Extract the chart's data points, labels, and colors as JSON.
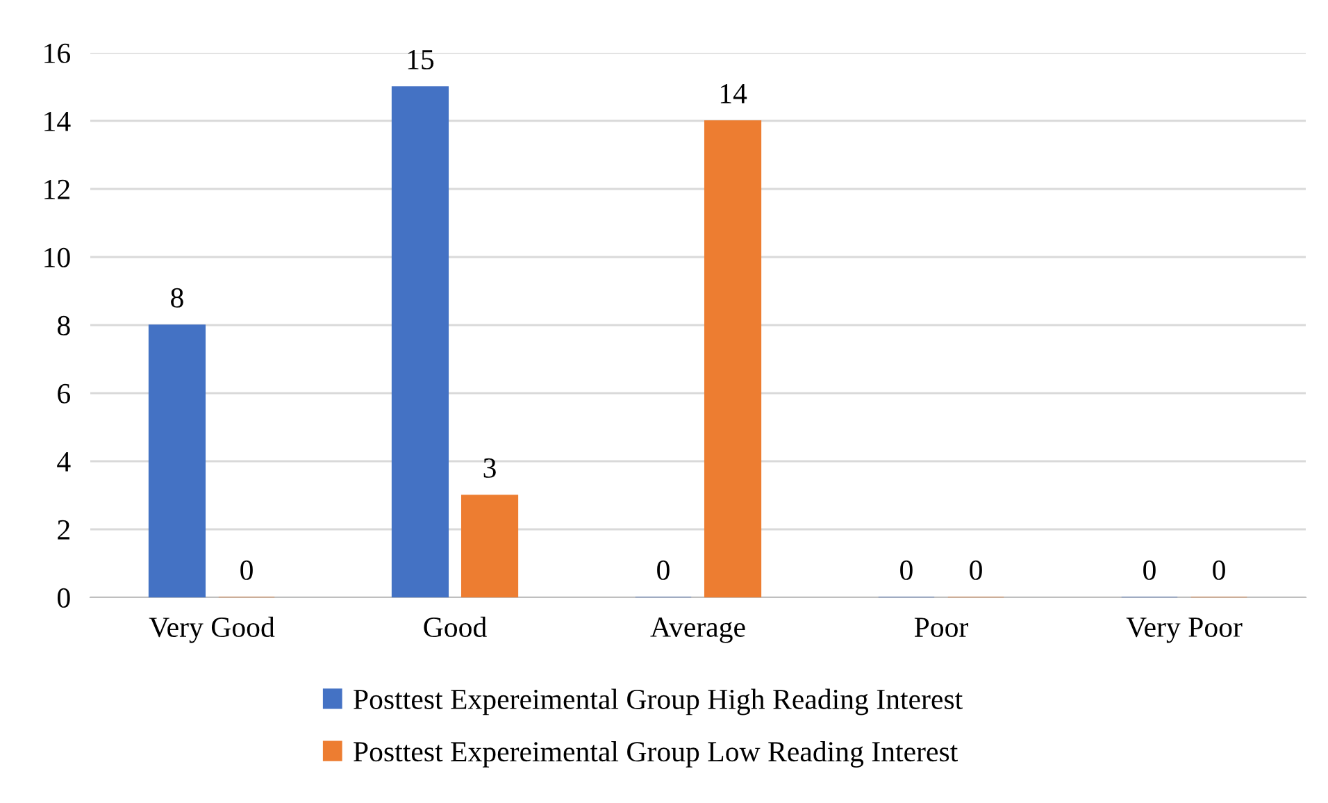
{
  "chart_data": {
    "type": "bar",
    "categories": [
      "Very Good",
      "Good",
      "Average",
      "Poor",
      "Very Poor"
    ],
    "series": [
      {
        "name": "Posttest Expereimental Group High Reading Interest",
        "color": "#4472c4",
        "values": [
          8,
          15,
          0,
          0,
          0
        ]
      },
      {
        "name": "Posttest Expereimental Group Low Reading Interest",
        "color": "#ed7d31",
        "values": [
          0,
          3,
          14,
          0,
          0
        ]
      }
    ],
    "ylim": [
      0,
      16
    ],
    "yticks": [
      0,
      2,
      4,
      6,
      8,
      10,
      12,
      14,
      16
    ],
    "grid": "y",
    "legend": "bottom",
    "data_labels": true
  }
}
